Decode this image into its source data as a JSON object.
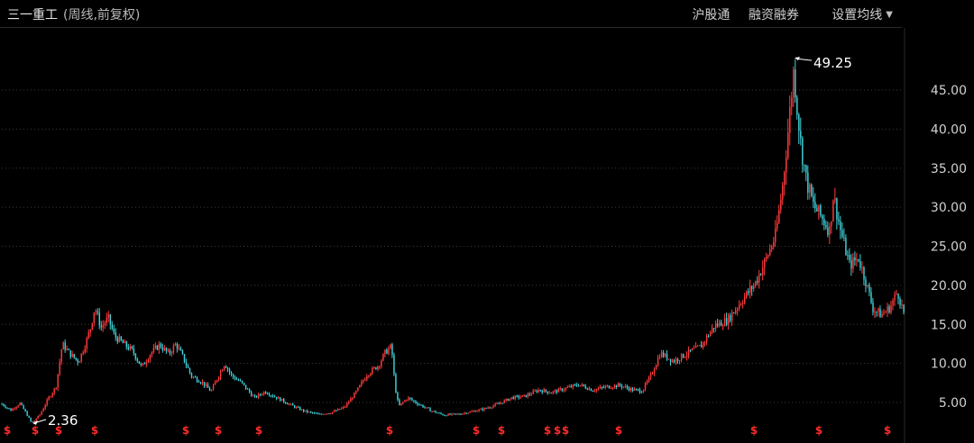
{
  "header": {
    "stock_name": "三一重工",
    "mode": "(周线,前复权)",
    "menu": [
      {
        "label": "沪股通"
      },
      {
        "label": "融资融券"
      },
      {
        "label": "设置均线"
      }
    ]
  },
  "colors": {
    "up": "#ff3b3b",
    "down": "#3fd0d8",
    "grid": "#3a3a3a",
    "event": "#ff2b2b"
  },
  "chart_data": {
    "type": "candlestick",
    "y_ticks": [
      "5.00",
      "10.00",
      "15.00",
      "20.00",
      "25.00",
      "30.00",
      "35.00",
      "40.00",
      "45.00"
    ],
    "ylim": [
      0,
      52
    ],
    "annotations": [
      {
        "label": "49.25",
        "x": 0.878,
        "value": 49.25
      },
      {
        "label": "2.36",
        "x": 0.033,
        "value": 2.36
      }
    ],
    "events": {
      "symbol": "$",
      "x": [
        0.006,
        0.037,
        0.063,
        0.103,
        0.204,
        0.24,
        0.285,
        0.43,
        0.526,
        0.554,
        0.605,
        0.616,
        0.625,
        0.684,
        0.834,
        0.906,
        0.982
      ]
    },
    "close_series": [
      [
        0.0,
        4.8
      ],
      [
        0.01,
        4.0
      ],
      [
        0.02,
        4.9
      ],
      [
        0.027,
        3.6
      ],
      [
        0.033,
        2.36
      ],
      [
        0.042,
        3.4
      ],
      [
        0.052,
        5.6
      ],
      [
        0.06,
        7.0
      ],
      [
        0.067,
        12.5
      ],
      [
        0.075,
        11.3
      ],
      [
        0.085,
        10.2
      ],
      [
        0.093,
        12.6
      ],
      [
        0.098,
        14.4
      ],
      [
        0.103,
        17.2
      ],
      [
        0.11,
        14.6
      ],
      [
        0.118,
        15.8
      ],
      [
        0.125,
        13.5
      ],
      [
        0.135,
        12.5
      ],
      [
        0.145,
        11.6
      ],
      [
        0.155,
        9.5
      ],
      [
        0.165,
        11.3
      ],
      [
        0.175,
        12.4
      ],
      [
        0.185,
        11.2
      ],
      [
        0.193,
        12.5
      ],
      [
        0.2,
        11.0
      ],
      [
        0.21,
        8.4
      ],
      [
        0.222,
        7.6
      ],
      [
        0.232,
        6.4
      ],
      [
        0.24,
        8.4
      ],
      [
        0.247,
        10.0
      ],
      [
        0.255,
        8.4
      ],
      [
        0.265,
        7.6
      ],
      [
        0.28,
        5.6
      ],
      [
        0.292,
        6.4
      ],
      [
        0.305,
        5.6
      ],
      [
        0.32,
        4.7
      ],
      [
        0.335,
        3.9
      ],
      [
        0.35,
        3.5
      ],
      [
        0.365,
        3.7
      ],
      [
        0.38,
        4.4
      ],
      [
        0.392,
        6.2
      ],
      [
        0.405,
        8.6
      ],
      [
        0.418,
        9.8
      ],
      [
        0.425,
        11.4
      ],
      [
        0.432,
        12.2
      ],
      [
        0.436,
        7.0
      ],
      [
        0.44,
        4.5
      ],
      [
        0.45,
        5.6
      ],
      [
        0.462,
        4.8
      ],
      [
        0.475,
        4.0
      ],
      [
        0.49,
        3.4
      ],
      [
        0.505,
        3.5
      ],
      [
        0.52,
        3.8
      ],
      [
        0.535,
        4.2
      ],
      [
        0.55,
        4.8
      ],
      [
        0.565,
        5.6
      ],
      [
        0.58,
        5.8
      ],
      [
        0.595,
        6.6
      ],
      [
        0.61,
        6.3
      ],
      [
        0.625,
        6.8
      ],
      [
        0.64,
        7.3
      ],
      [
        0.655,
        6.6
      ],
      [
        0.67,
        7.0
      ],
      [
        0.685,
        7.2
      ],
      [
        0.7,
        6.6
      ],
      [
        0.71,
        6.5
      ],
      [
        0.72,
        8.5
      ],
      [
        0.73,
        11.3
      ],
      [
        0.745,
        10.3
      ],
      [
        0.76,
        11.3
      ],
      [
        0.775,
        12.2
      ],
      [
        0.79,
        14.8
      ],
      [
        0.805,
        15.6
      ],
      [
        0.82,
        18.0
      ],
      [
        0.835,
        20.2
      ],
      [
        0.848,
        23.5
      ],
      [
        0.858,
        26.4
      ],
      [
        0.866,
        33.0
      ],
      [
        0.872,
        40.0
      ],
      [
        0.878,
        47.6
      ],
      [
        0.882,
        42.6
      ],
      [
        0.886,
        38.0
      ],
      [
        0.892,
        33.5
      ],
      [
        0.9,
        30.2
      ],
      [
        0.91,
        28.5
      ],
      [
        0.918,
        27.0
      ],
      [
        0.922,
        31.6
      ],
      [
        0.93,
        27.0
      ],
      [
        0.94,
        22.6
      ],
      [
        0.95,
        23.5
      ],
      [
        0.958,
        20.5
      ],
      [
        0.966,
        17.0
      ],
      [
        0.975,
        16.2
      ],
      [
        0.985,
        17.2
      ],
      [
        0.993,
        19.2
      ],
      [
        1.0,
        16.5
      ]
    ]
  }
}
